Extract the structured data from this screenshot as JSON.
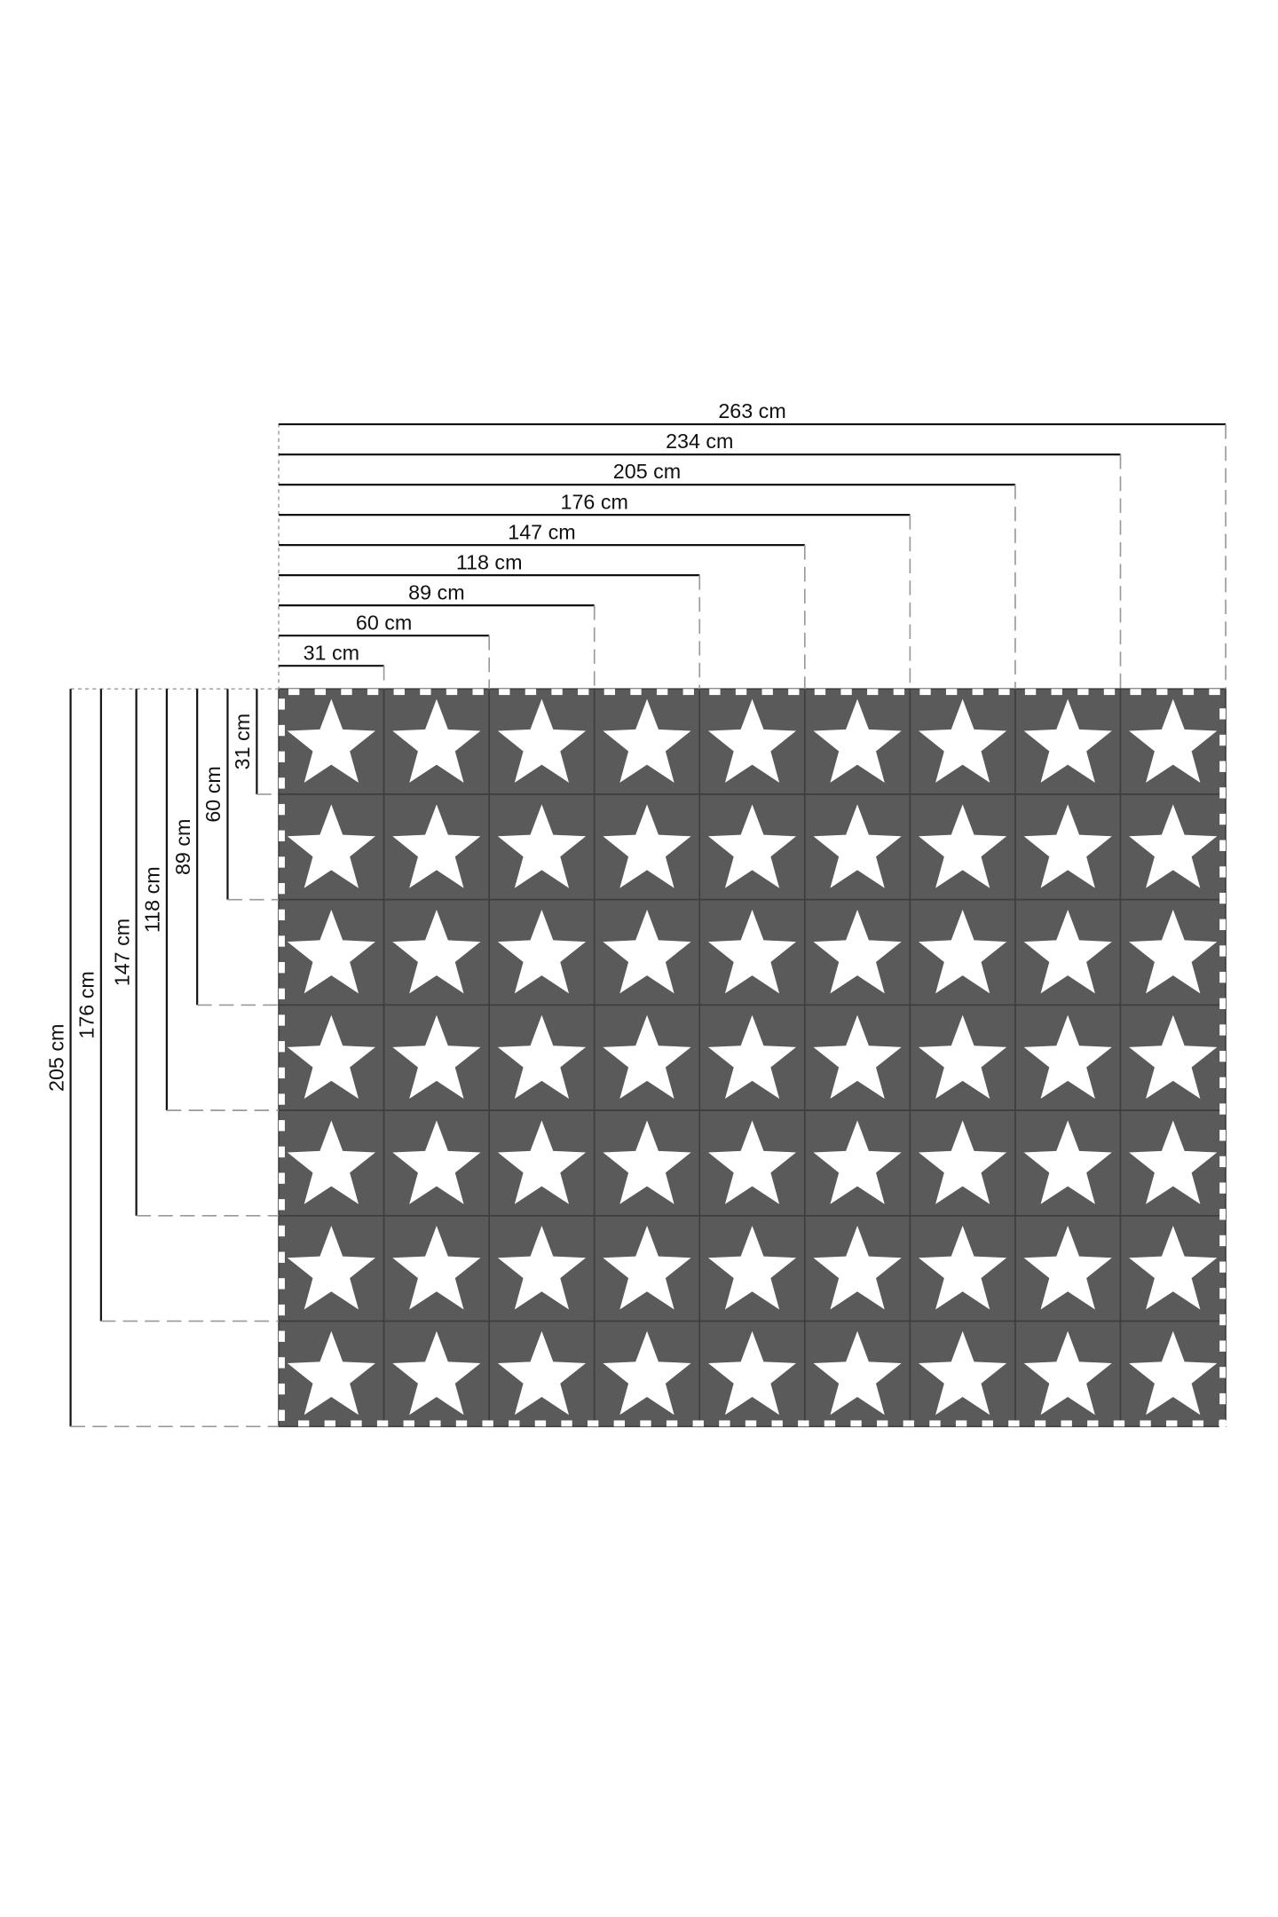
{
  "unit": "cm",
  "width_dimensions": [
    "31 cm",
    "60 cm",
    "89 cm",
    "118 cm",
    "147 cm",
    "176 cm",
    "205 cm",
    "234 cm",
    "263 cm"
  ],
  "height_dimensions": [
    "31 cm",
    "60 cm",
    "89 cm",
    "118 cm",
    "147 cm",
    "176 cm",
    "205 cm"
  ],
  "mat": {
    "columns": 9,
    "rows": 7,
    "tile_motif": "star-icon",
    "tile_color": "#5a5a5a",
    "star_color": "#ffffff"
  },
  "colors": {
    "line": "#111111",
    "dashed_guide": "#999999"
  }
}
